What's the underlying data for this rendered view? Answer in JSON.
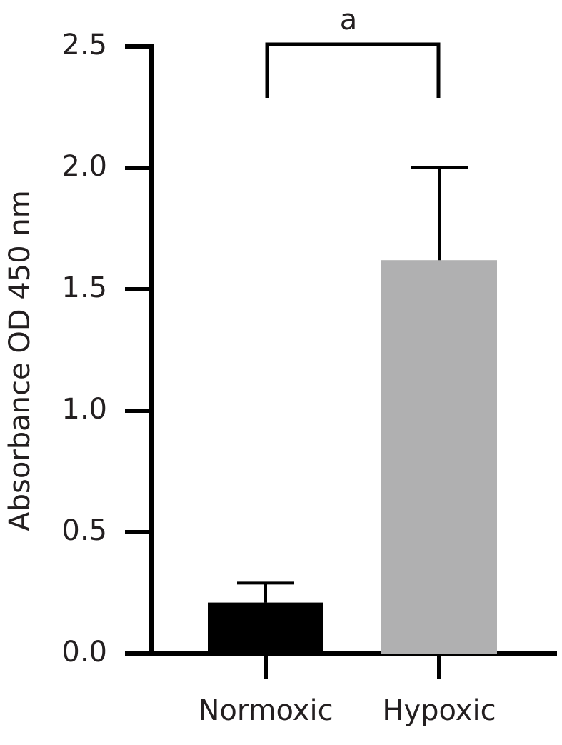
{
  "chart_data": {
    "type": "bar",
    "ylabel": "Absorbance OD 450 nm",
    "categories": [
      "Normoxic",
      "Hypoxic"
    ],
    "values": [
      0.21,
      1.62
    ],
    "errors": [
      0.08,
      0.38
    ],
    "colors": [
      "#000000",
      "#b0b0b1"
    ],
    "ylim": [
      0,
      2.5
    ],
    "yticks": [
      {
        "value": 0,
        "label": "0.0"
      },
      0.5,
      {
        "value": 1,
        "label": "1.0"
      },
      1.5,
      {
        "value": 2,
        "label": "2.0"
      },
      2.5
    ],
    "annotation": "a"
  }
}
